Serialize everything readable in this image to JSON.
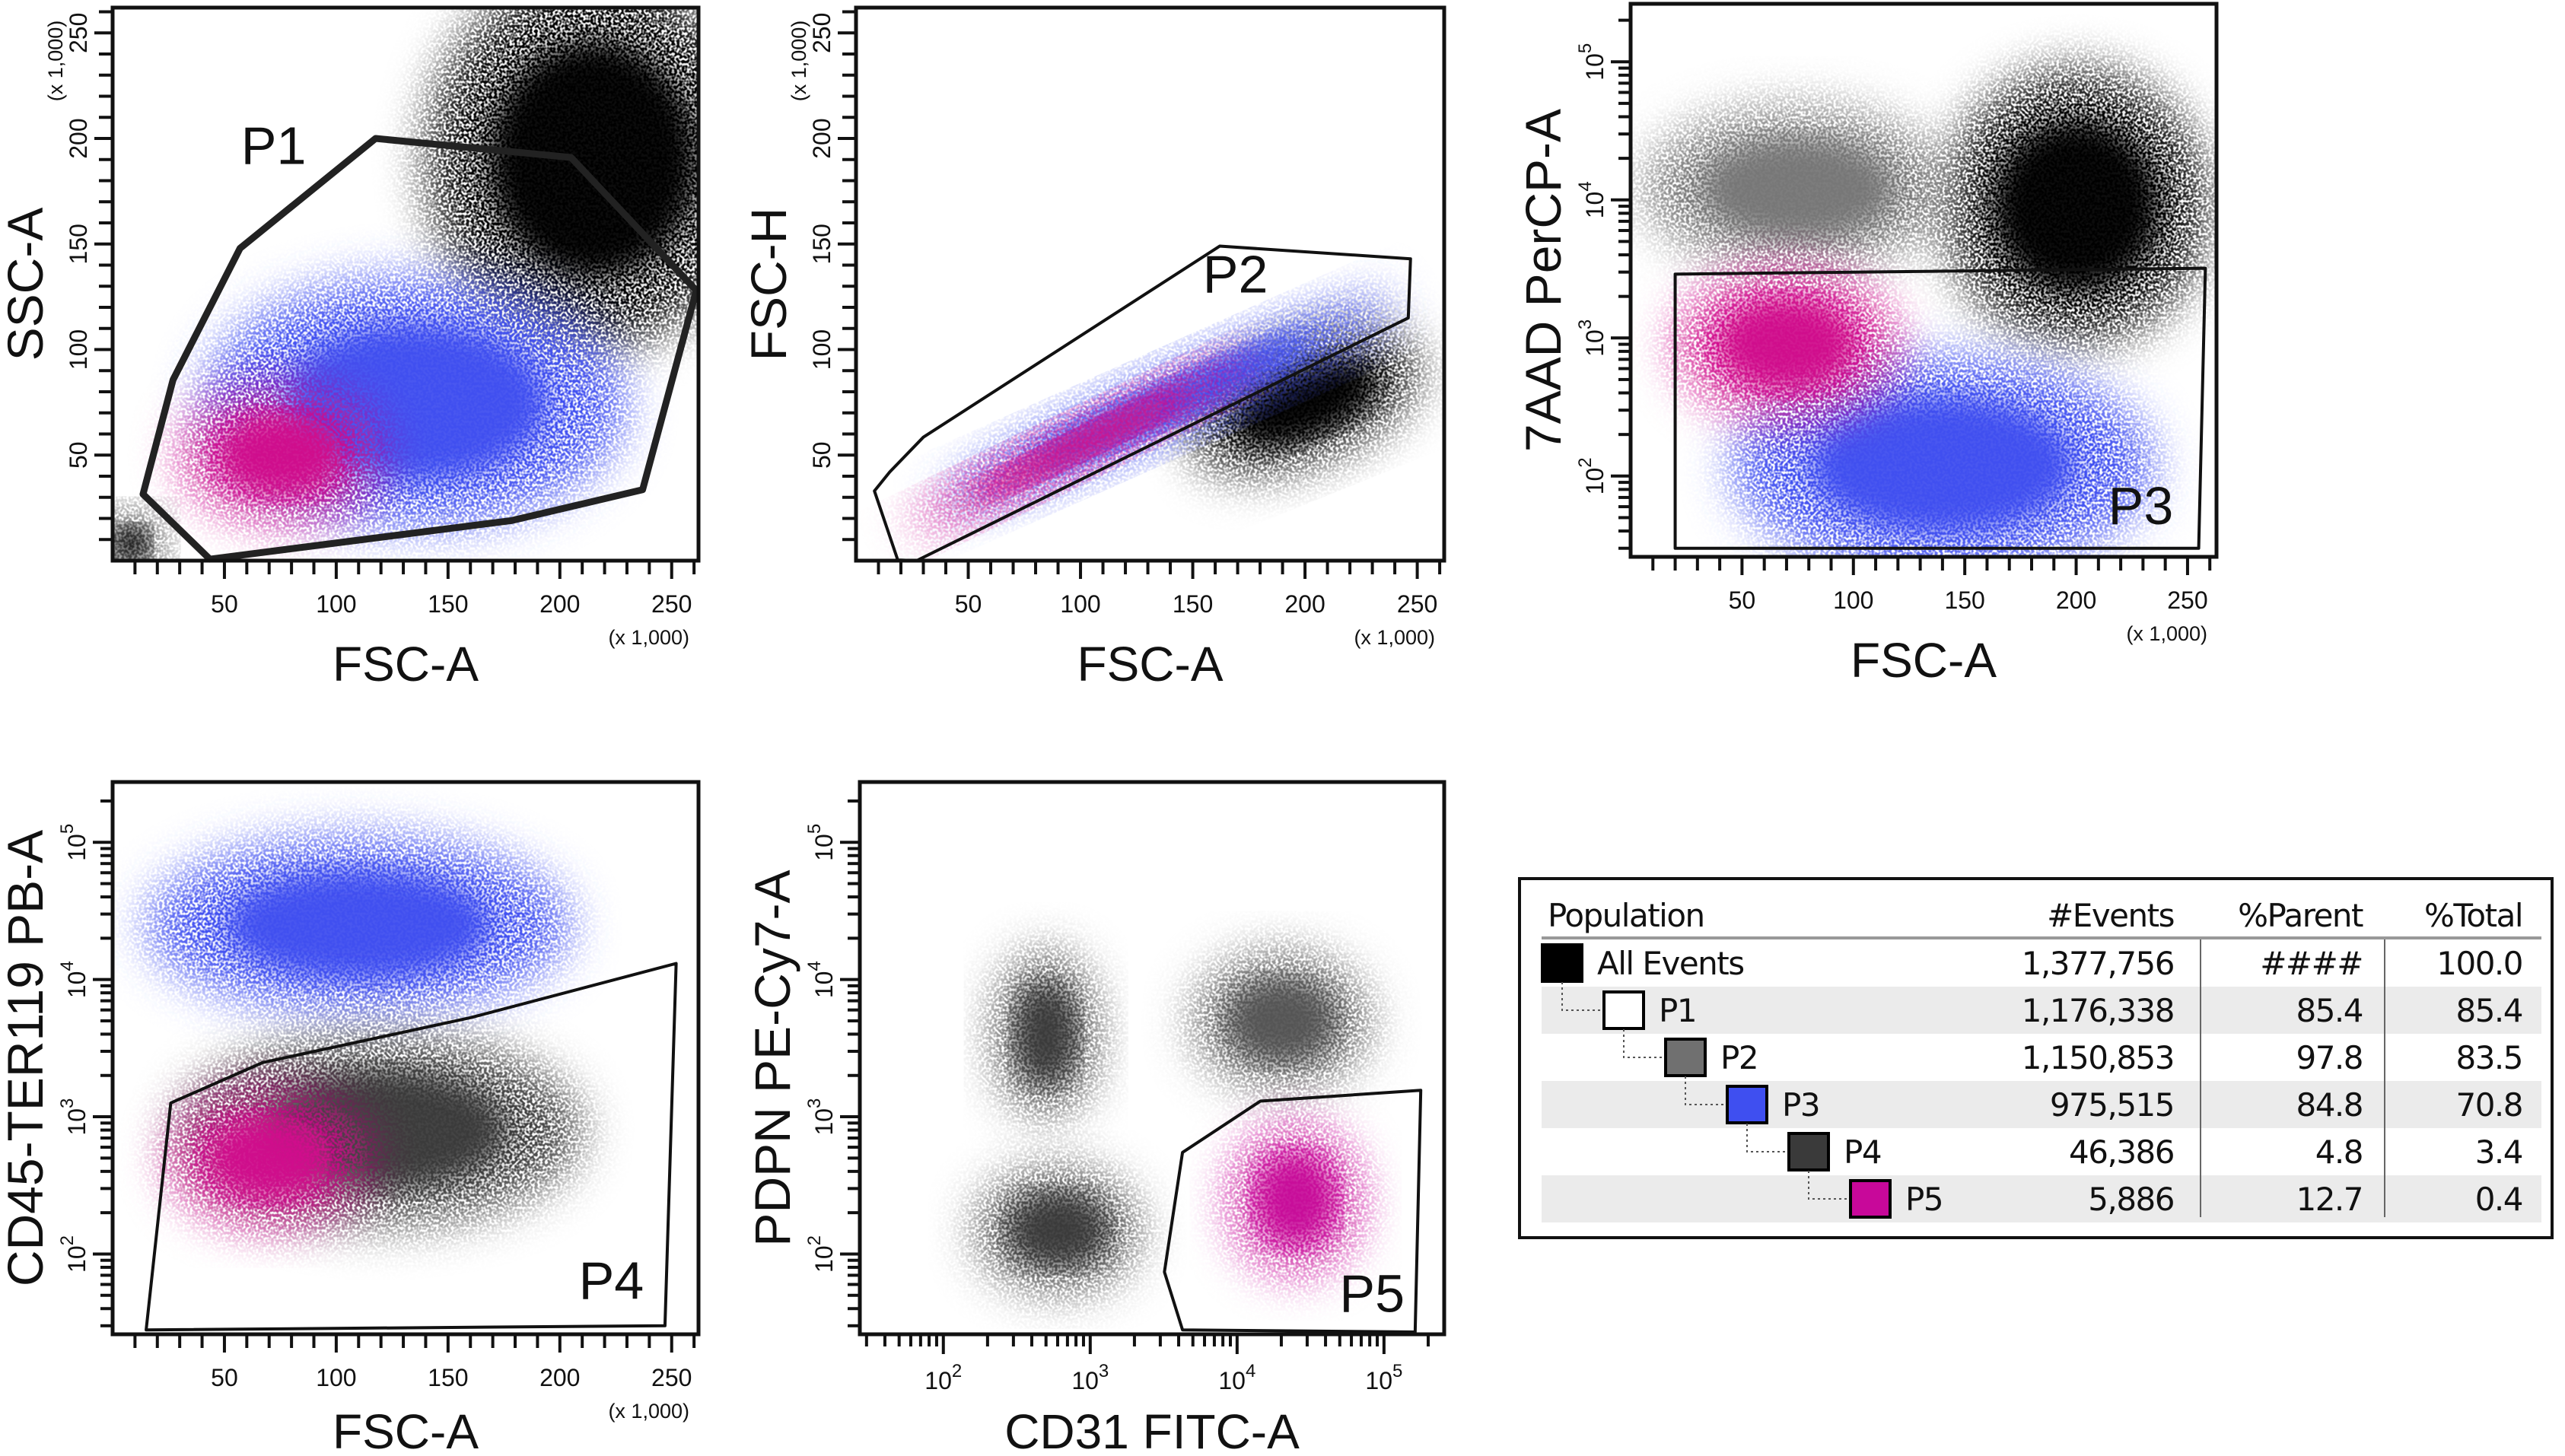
{
  "colors": {
    "all_events": "#000000",
    "p1": "#ffffff",
    "p2": "#707070",
    "p3": "#3f4ff0",
    "p4": "#3a3a3a",
    "p5": "#c8089a",
    "row_shade": "#ebebeb"
  },
  "chart_data": [
    {
      "type": "scatter",
      "xlabel": "FSC-A",
      "ylabel": "SSC-A",
      "x_scale": "linear",
      "x_range": [
        0,
        262
      ],
      "x_ticks": [
        50,
        100,
        150,
        200,
        250
      ],
      "x_multiplier": "(x 1,000)",
      "y_scale": "linear",
      "y_range": [
        0,
        262
      ],
      "y_ticks": [
        50,
        100,
        150,
        200,
        250
      ],
      "y_multiplier": "(x 1,000)",
      "gate": {
        "name": "P1",
        "vertices": [
          [
            13.6,
            31.5
          ],
          [
            43.5,
            0.7
          ],
          [
            178.5,
            19
          ],
          [
            237,
            33.6
          ],
          [
            261,
            128
          ],
          [
            205,
            191
          ],
          [
            117.6,
            200
          ],
          [
            57,
            148
          ],
          [
            27,
            85.6
          ]
        ],
        "label_at": [
          72,
          188
        ]
      },
      "populations": [
        {
          "color": "#000000",
          "center": [
            215,
            190
          ],
          "spread": [
            75,
            90
          ]
        },
        {
          "color": "#000000",
          "center": [
            8,
            8
          ],
          "spread": [
            14,
            14
          ]
        },
        {
          "color": "#3f4ff0",
          "center": [
            135,
            75
          ],
          "spread": [
            95,
            60
          ]
        },
        {
          "color": "#d0108c",
          "center": [
            75,
            50
          ],
          "spread": [
            45,
            32
          ]
        }
      ]
    },
    {
      "type": "scatter",
      "xlabel": "FSC-A",
      "ylabel": "FSC-H",
      "x_scale": "linear",
      "x_range": [
        0,
        262
      ],
      "x_ticks": [
        50,
        100,
        150,
        200,
        250
      ],
      "x_multiplier": "(x 1,000)",
      "y_scale": "linear",
      "y_range": [
        0,
        262
      ],
      "y_ticks": [
        50,
        100,
        150,
        200,
        250
      ],
      "y_multiplier": "(x 1,000)",
      "gate": {
        "name": "P2",
        "vertices": [
          [
            8.2,
            33
          ],
          [
            18.6,
            0.3
          ],
          [
            27,
            0
          ],
          [
            246,
            115
          ],
          [
            247,
            143
          ],
          [
            162,
            149
          ],
          [
            30,
            58.5
          ],
          [
            15,
            42
          ]
        ],
        "label_at": [
          169,
          127
        ]
      },
      "populations": [
        {
          "color": "#000000",
          "center": [
            200,
            75
          ],
          "spread": [
            55,
            28
          ],
          "angle": -22
        },
        {
          "color": "#3f4ff0",
          "center": [
            140,
            75
          ],
          "spread": [
            110,
            16
          ],
          "angle": -24
        },
        {
          "color": "#d0108c",
          "center": [
            100,
            55
          ],
          "spread": [
            85,
            11
          ],
          "angle": -26
        }
      ]
    },
    {
      "type": "scatter",
      "xlabel": "FSC-A",
      "ylabel": "7AAD PerCP-A",
      "x_scale": "linear",
      "x_range": [
        0,
        263
      ],
      "x_ticks": [
        50,
        100,
        150,
        200,
        250
      ],
      "x_multiplier": "(x 1,000)",
      "y_scale": "log",
      "y_range": [
        26,
        263000
      ],
      "y_ticks": [
        100,
        1000,
        10000,
        100000
      ],
      "gate": {
        "name": "P3",
        "vertices": [
          [
            20,
            30
          ],
          [
            20,
            2900
          ],
          [
            258,
            3200
          ],
          [
            255,
            30
          ]
        ],
        "label_at": [
          229,
          45
        ]
      },
      "populations": [
        {
          "color": "#000000",
          "center": [
            200,
            9000
          ],
          "spread": [
            60,
            1.0
          ]
        },
        {
          "color": "#777777",
          "center": [
            75,
            12000
          ],
          "spread": [
            70,
            0.6
          ]
        },
        {
          "color": "#3f4ff0",
          "center": [
            140,
            120
          ],
          "spread": [
            95,
            0.8
          ]
        },
        {
          "color": "#d0108c",
          "center": [
            70,
            900
          ],
          "spread": [
            50,
            0.55
          ]
        }
      ]
    },
    {
      "type": "scatter",
      "xlabel": "FSC-A",
      "ylabel": "CD45-TER119 PB-A",
      "x_scale": "linear",
      "x_range": [
        0,
        262
      ],
      "x_ticks": [
        50,
        100,
        150,
        200,
        250
      ],
      "x_multiplier": "(x 1,000)",
      "y_scale": "log",
      "y_range": [
        26,
        275000
      ],
      "y_ticks": [
        100,
        1000,
        10000,
        100000
      ],
      "gate": {
        "name": "P4",
        "vertices": [
          [
            15,
            28
          ],
          [
            26,
            1260
          ],
          [
            67,
            2480
          ],
          [
            160,
            5270
          ],
          [
            252,
            13100
          ],
          [
            247,
            30
          ]
        ],
        "label_at": [
          223,
          47
        ]
      },
      "populations": [
        {
          "color": "#3f4ff0",
          "center": [
            110,
            25000
          ],
          "spread": [
            95,
            0.65
          ]
        },
        {
          "color": "#3a3a3a",
          "center": [
            120,
            800
          ],
          "spread": [
            90,
            0.7
          ]
        },
        {
          "color": "#d0108c",
          "center": [
            70,
            500
          ],
          "spread": [
            45,
            0.5
          ]
        }
      ]
    },
    {
      "type": "scatter",
      "xlabel": "CD31 FITC-A",
      "ylabel": "PDPN PE-Cy7-A",
      "x_scale": "log",
      "x_range": [
        27,
        257000
      ],
      "x_ticks": [
        100,
        1000,
        10000,
        100000
      ],
      "y_scale": "log",
      "y_range": [
        26,
        275000
      ],
      "y_ticks": [
        100,
        1000,
        10000,
        100000
      ],
      "gate": {
        "name": "P5",
        "vertices": [
          [
            4250,
            28
          ],
          [
            3200,
            74
          ],
          [
            4250,
            550
          ],
          [
            14400,
            1300
          ],
          [
            178000,
            1560
          ],
          [
            163000,
            27
          ]
        ],
        "label_at": [
          83000,
          38
        ]
      },
      "populations": [
        {
          "color": "#3a3a3a",
          "center": [
            500,
            4000
          ],
          "spread": [
            0.35,
            0.6
          ]
        },
        {
          "color": "#3a3a3a",
          "center": [
            600,
            150
          ],
          "spread": [
            0.55,
            0.45
          ]
        },
        {
          "color": "#555555",
          "center": [
            20000,
            5000
          ],
          "spread": [
            0.6,
            0.5
          ]
        },
        {
          "color": "#c8089a",
          "center": [
            25000,
            250
          ],
          "spread": [
            0.45,
            0.55
          ]
        }
      ]
    }
  ],
  "population_table": {
    "headers": {
      "population": "Population",
      "events": "#Events",
      "parent": "%Parent",
      "total": "%Total"
    },
    "rows": [
      {
        "name": "All Events",
        "events": "1,377,756",
        "parent": "####",
        "total": "100.0",
        "level": 0,
        "color": "#000000"
      },
      {
        "name": "P1",
        "events": "1,176,338",
        "parent": "85.4",
        "total": "85.4",
        "level": 1,
        "color": "#ffffff"
      },
      {
        "name": "P2",
        "events": "1,150,853",
        "parent": "97.8",
        "total": "83.5",
        "level": 2,
        "color": "#707070"
      },
      {
        "name": "P3",
        "events": "975,515",
        "parent": "84.8",
        "total": "70.8",
        "level": 3,
        "color": "#3f4ff0"
      },
      {
        "name": "P4",
        "events": "46,386",
        "parent": "4.8",
        "total": "3.4",
        "level": 4,
        "color": "#3a3a3a"
      },
      {
        "name": "P5",
        "events": "5,886",
        "parent": "12.7",
        "total": "0.4",
        "level": 5,
        "color": "#c8089a"
      }
    ]
  }
}
